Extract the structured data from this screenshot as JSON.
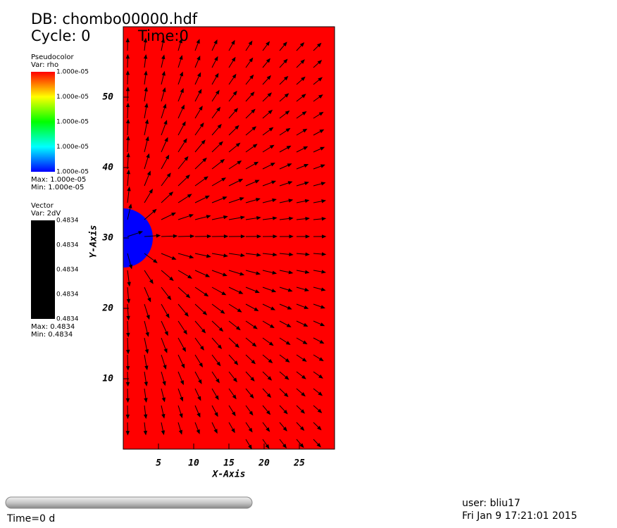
{
  "header": {
    "db": "DB: chombo00000.hdf",
    "cycle": "Cycle: 0",
    "time": "Time:0"
  },
  "legends": [
    {
      "title": "Pseudocolor",
      "var": "Var: rho",
      "labels": [
        "1.000e-05",
        "1.000e-05",
        "1.000e-05",
        "1.000e-05",
        "1.000e-05"
      ],
      "max": "Max:  1.000e-05",
      "min": "Min:  1.000e-05"
    },
    {
      "title": "Vector",
      "var": "Var: 2dV",
      "labels": [
        "0.4834",
        "0.4834",
        "0.4834",
        "0.4834",
        "0.4834"
      ],
      "max": "Max: 0.4834",
      "min": "Min: 0.4834"
    }
  ],
  "chart_data": {
    "type": "vector",
    "xlabel": "X-Axis",
    "ylabel": "Y-Axis",
    "xlim": [
      0,
      30
    ],
    "ylim": [
      0,
      60
    ],
    "xticks": [
      5,
      10,
      15,
      20,
      25
    ],
    "yticks": [
      10,
      20,
      30,
      40,
      50
    ],
    "field_color": "#ff0000",
    "arrow_color": "#000000"
  },
  "footer": {
    "time": "Time=0 d",
    "user": "user: bliu17",
    "date": "Fri Jan  9 17:21:01 2015"
  }
}
